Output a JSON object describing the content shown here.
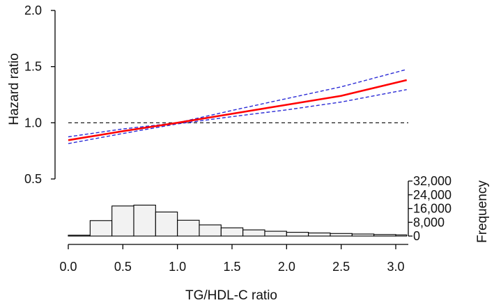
{
  "chart_data": {
    "type": "line",
    "xlabel": "TG/HDL-C ratio",
    "ylabel": "Hazard ratio",
    "y2label": "Frequency",
    "xlim": [
      0.0,
      3.1
    ],
    "ylim": [
      0.5,
      2.0
    ],
    "x_ticks": [
      "0.0",
      "0.5",
      "1.0",
      "1.5",
      "2.0",
      "2.5",
      "3.0"
    ],
    "y_ticks": [
      "0.5",
      "1.0",
      "1.5",
      "2.0"
    ],
    "freq_ticks": [
      "0",
      "8,000",
      "16,000",
      "24,000",
      "32,000"
    ],
    "reference_line": 1.0,
    "colors": {
      "estimate": "#ff0000",
      "ci": "#2a2ad6",
      "reference": "#000000",
      "bars": "#f2f2f2"
    },
    "series": [
      {
        "x": [
          0.0,
          0.5,
          1.0,
          1.5,
          2.0,
          2.5,
          3.1
        ],
        "y": [
          0.845,
          0.925,
          1.0,
          1.08,
          1.16,
          1.24,
          1.38
        ]
      },
      {
        "x": [
          0.0,
          0.5,
          1.0,
          1.5,
          2.0,
          2.5,
          3.1
        ],
        "y": [
          0.875,
          0.945,
          1.0,
          1.11,
          1.215,
          1.32,
          1.475
        ]
      },
      {
        "x": [
          0.0,
          0.5,
          1.0,
          1.5,
          2.0,
          2.5,
          3.1
        ],
        "y": [
          0.815,
          0.905,
          0.99,
          1.055,
          1.115,
          1.185,
          1.295
        ]
      }
    ],
    "histogram": {
      "bin_edges": [
        0.0,
        0.2,
        0.4,
        0.6,
        0.8,
        1.0,
        1.2,
        1.4,
        1.6,
        1.8,
        2.0,
        2.2,
        2.4,
        2.6,
        2.8,
        3.0,
        3.1
      ],
      "counts": [
        500,
        9000,
        17500,
        18000,
        14000,
        9200,
        6500,
        4800,
        3600,
        2800,
        2200,
        1800,
        1500,
        1200,
        900,
        700
      ]
    }
  }
}
